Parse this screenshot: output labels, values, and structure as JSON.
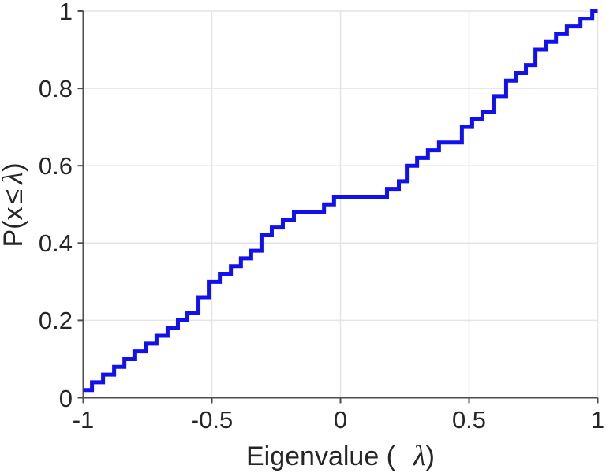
{
  "chart_data": {
    "type": "line",
    "subtype": "empirical-cdf-stairs",
    "title": "",
    "xlabel_pre": "Eigenvalue (",
    "xlabel_symbol": "λ",
    "xlabel_post": ")",
    "ylabel_pre": "P(x",
    "ylabel_leq": "≤",
    "ylabel_symbol": "λ",
    "ylabel_post": ")",
    "xlim": [
      -1,
      1
    ],
    "ylim": [
      0,
      1
    ],
    "xticks": [
      -1,
      -0.5,
      0,
      0.5,
      1
    ],
    "xtick_labels": [
      "-1",
      "-0.5",
      "0",
      "0.5",
      "1"
    ],
    "yticks": [
      0,
      0.2,
      0.4,
      0.6,
      0.8,
      1
    ],
    "ytick_labels": [
      "0",
      "0.2",
      "0.4",
      "0.6",
      "0.8",
      "1"
    ],
    "grid": true,
    "legend": "none",
    "line_color": "#1111ee",
    "line_width": 5,
    "axis_color": "#4d4d4d",
    "grid_color": "#e4e4e4",
    "text_color": "#262626",
    "background": "#ffffff",
    "ecdf": {
      "start": [
        -1,
        0.02
      ],
      "steps": [
        [
          -0.966,
          0.04
        ],
        [
          -0.923,
          0.06
        ],
        [
          -0.88,
          0.08
        ],
        [
          -0.84,
          0.1
        ],
        [
          -0.801,
          0.12
        ],
        [
          -0.755,
          0.14
        ],
        [
          -0.715,
          0.16
        ],
        [
          -0.672,
          0.18
        ],
        [
          -0.632,
          0.2
        ],
        [
          -0.595,
          0.22
        ],
        [
          -0.552,
          0.26
        ],
        [
          -0.512,
          0.3
        ],
        [
          -0.469,
          0.32
        ],
        [
          -0.426,
          0.34
        ],
        [
          -0.387,
          0.36
        ],
        [
          -0.347,
          0.38
        ],
        [
          -0.307,
          0.42
        ],
        [
          -0.267,
          0.44
        ],
        [
          -0.224,
          0.46
        ],
        [
          -0.181,
          0.48
        ],
        [
          -0.064,
          0.5
        ],
        [
          -0.025,
          0.52
        ],
        [
          0.181,
          0.54
        ],
        [
          0.227,
          0.56
        ],
        [
          0.258,
          0.6
        ],
        [
          0.298,
          0.62
        ],
        [
          0.34,
          0.64
        ],
        [
          0.383,
          0.66
        ],
        [
          0.472,
          0.7
        ],
        [
          0.512,
          0.72
        ],
        [
          0.552,
          0.74
        ],
        [
          0.595,
          0.78
        ],
        [
          0.644,
          0.82
        ],
        [
          0.684,
          0.84
        ],
        [
          0.721,
          0.86
        ],
        [
          0.758,
          0.9
        ],
        [
          0.798,
          0.92
        ],
        [
          0.838,
          0.94
        ],
        [
          0.88,
          0.96
        ],
        [
          0.933,
          0.98
        ],
        [
          0.979,
          1.0
        ]
      ],
      "end_x": 1
    }
  }
}
